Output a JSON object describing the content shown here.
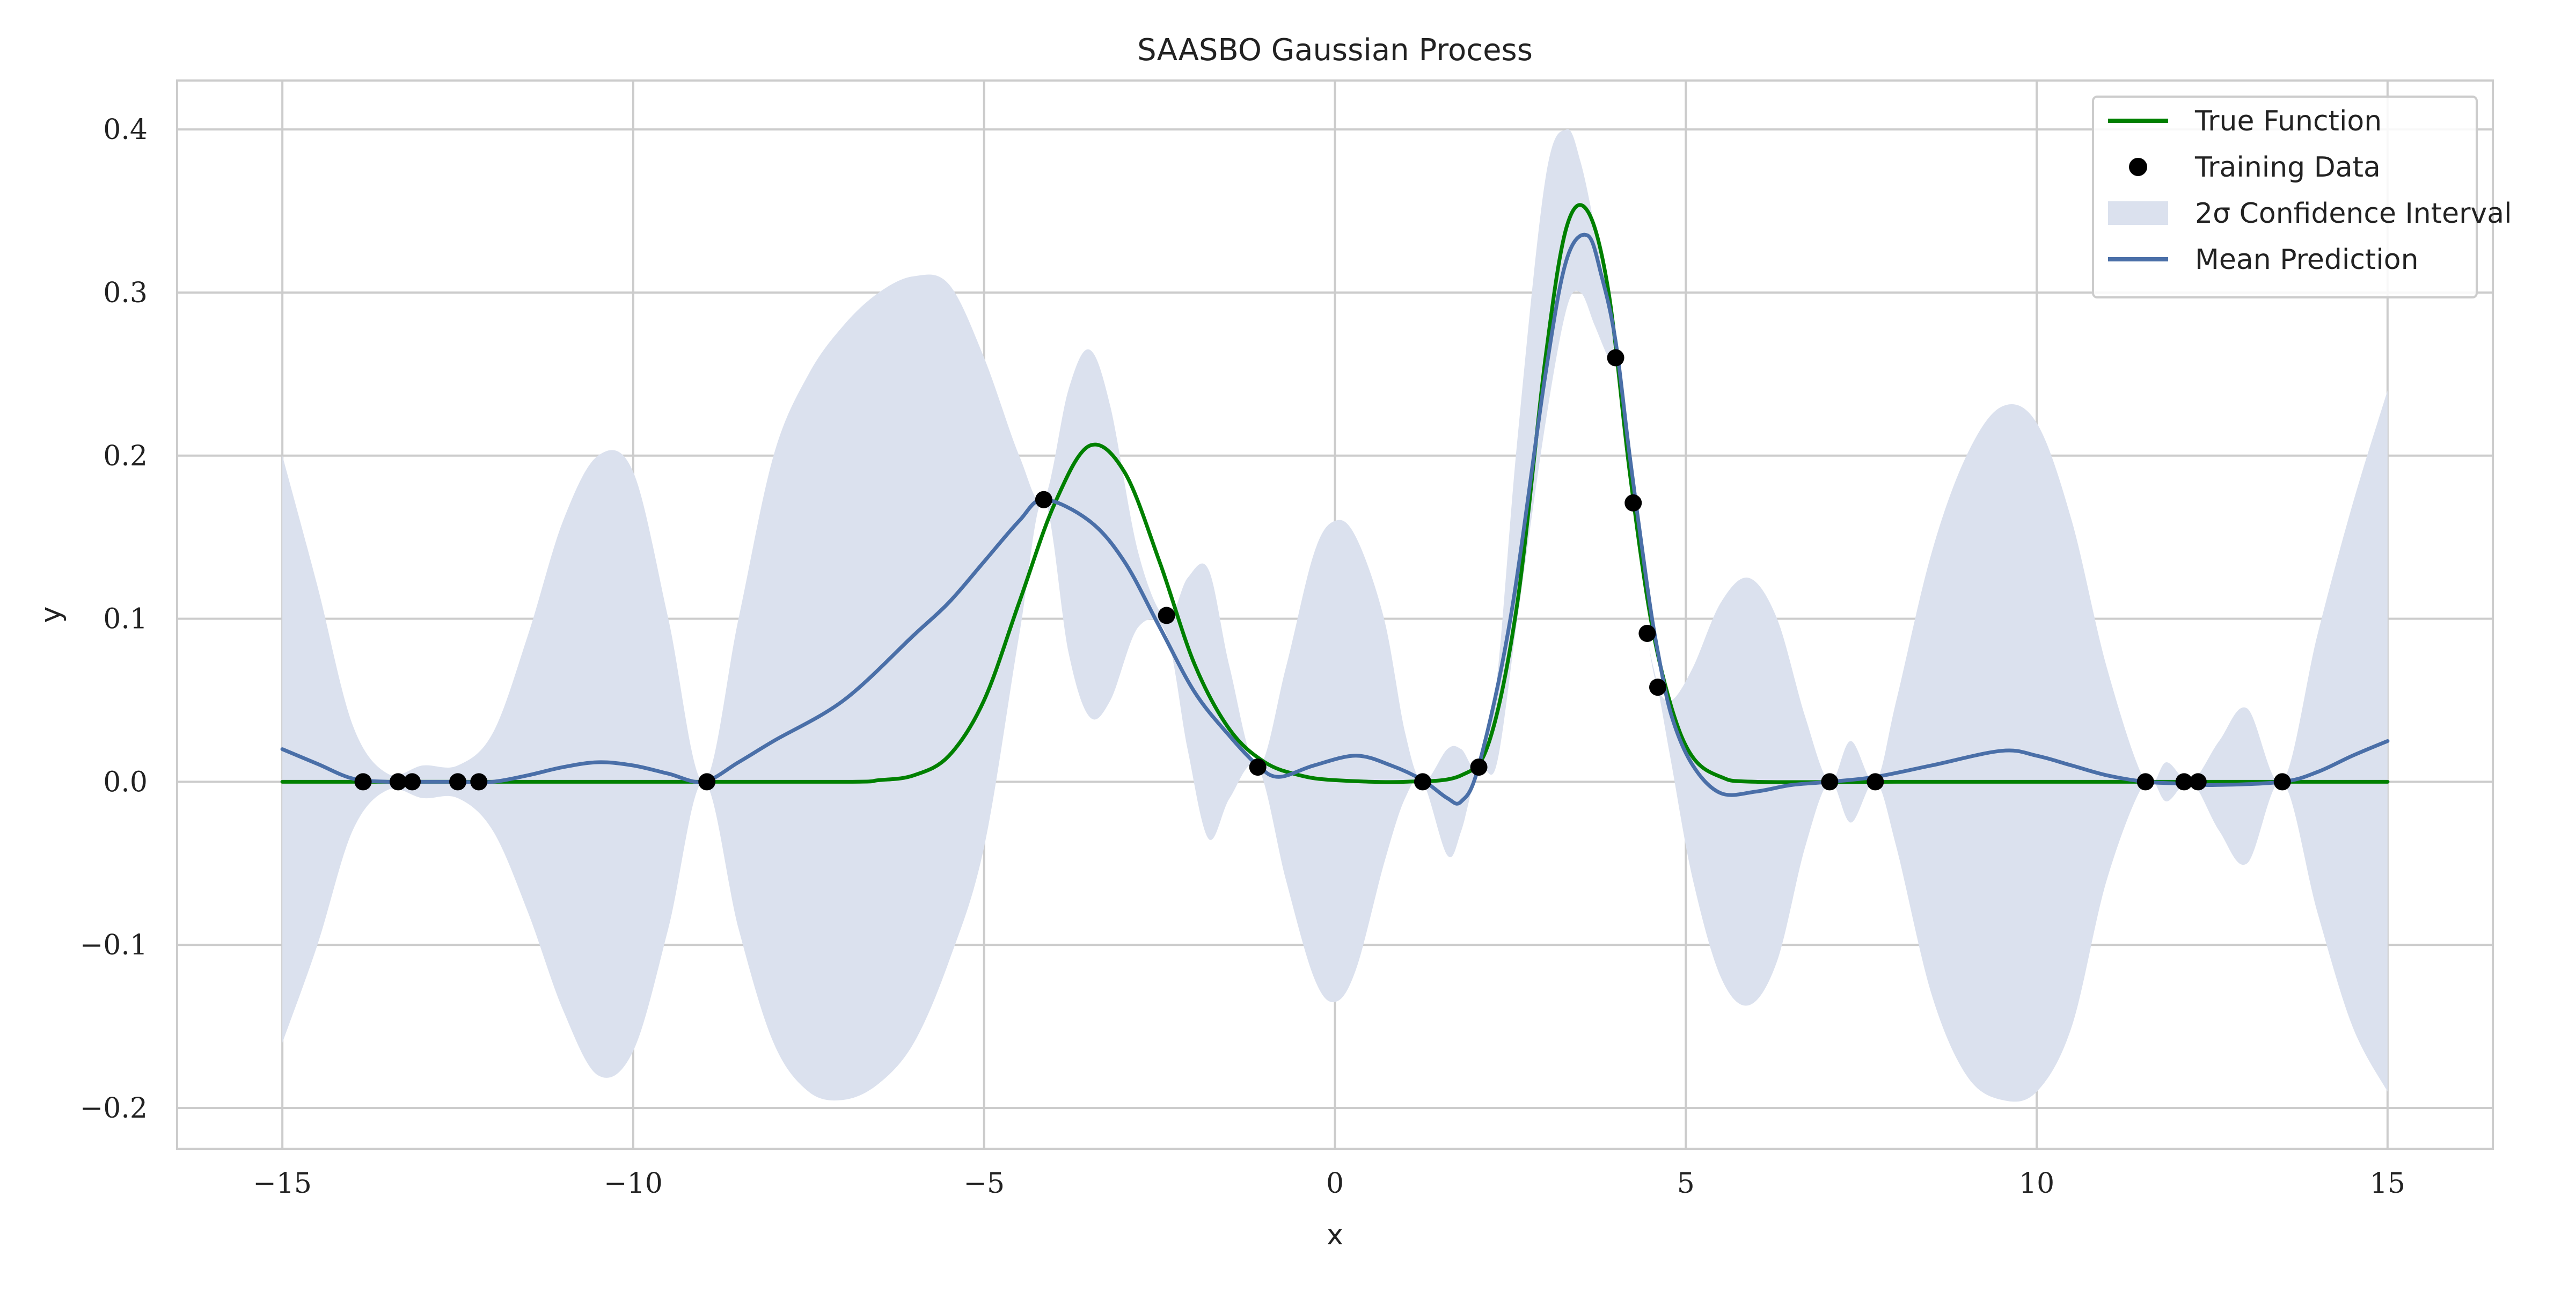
{
  "chart_data": {
    "type": "line",
    "title": "SAASBO Gaussian Process",
    "xlabel": "x",
    "ylabel": "y",
    "xlim": [
      -16.5,
      16.5
    ],
    "ylim": [
      -0.225,
      0.43
    ],
    "xticks": [
      -15,
      -10,
      -5,
      0,
      5,
      10,
      15
    ],
    "xtick_labels": [
      "−15",
      "−10",
      "−5",
      "0",
      "5",
      "10",
      "15"
    ],
    "yticks": [
      -0.2,
      -0.1,
      0.0,
      0.1,
      0.2,
      0.3,
      0.4
    ],
    "ytick_labels": [
      "−0.2",
      "−0.1",
      "0.0",
      "0.1",
      "0.2",
      "0.3",
      "0.4"
    ],
    "grid": true,
    "legend_position": "top-right",
    "legend": [
      {
        "label": "True Function",
        "kind": "line",
        "color": "#008000"
      },
      {
        "label": "Training Data",
        "kind": "marker",
        "color": "#000000"
      },
      {
        "label": "2σ Confidence Interval",
        "kind": "band",
        "color": "#dbe1ee"
      },
      {
        "label": "Mean Prediction",
        "kind": "line",
        "color": "#4a6fa8"
      }
    ],
    "series": [
      {
        "name": "True Function",
        "kind": "line",
        "color": "#008000",
        "x": [
          -15,
          -10,
          -7,
          -6.5,
          -6,
          -5.5,
          -5,
          -4.5,
          -4,
          -3.5,
          -3,
          -2.5,
          -2,
          -1.5,
          -1,
          -0.5,
          0,
          1,
          1.8,
          2.2,
          2.6,
          3,
          3.3,
          3.6,
          3.9,
          4.2,
          4.5,
          4.8,
          5.1,
          5.5,
          6,
          8,
          10,
          12,
          15
        ],
        "y": [
          0,
          0,
          0,
          0.001,
          0.004,
          0.016,
          0.05,
          0.11,
          0.17,
          0.206,
          0.19,
          0.135,
          0.072,
          0.032,
          0.012,
          0.004,
          0.001,
          0,
          0.004,
          0.025,
          0.11,
          0.26,
          0.34,
          0.35,
          0.3,
          0.19,
          0.1,
          0.045,
          0.015,
          0.003,
          0,
          0,
          0,
          0,
          0
        ]
      },
      {
        "name": "Mean Prediction",
        "kind": "line",
        "color": "#4a6fa8",
        "x": [
          -15,
          -14.5,
          -14,
          -13.5,
          -13,
          -12.5,
          -12,
          -11.5,
          -11,
          -10.5,
          -10,
          -9.5,
          -9,
          -8.5,
          -8,
          -7,
          -6,
          -5.5,
          -5,
          -4.5,
          -4.15,
          -3.5,
          -3,
          -2.5,
          -2,
          -1.5,
          -1.1,
          -0.8,
          -0.3,
          0.3,
          0.8,
          1.25,
          1.6,
          1.8,
          2.05,
          2.5,
          3,
          3.3,
          3.6,
          3.8,
          4.0,
          4.2,
          4.45,
          4.6,
          4.8,
          5.1,
          5.5,
          6,
          6.5,
          7.05,
          7.7,
          8.5,
          9.5,
          10,
          10.5,
          11,
          11.55,
          12,
          12.5,
          13.5,
          14,
          14.5,
          15
        ],
        "y": [
          0.02,
          0.011,
          0.002,
          0,
          0,
          0,
          0,
          0.004,
          0.009,
          0.012,
          0.01,
          0.005,
          0,
          0.012,
          0.025,
          0.05,
          0.09,
          0.11,
          0.135,
          0.16,
          0.173,
          0.16,
          0.135,
          0.095,
          0.055,
          0.028,
          0.01,
          0.003,
          0.01,
          0.016,
          0.01,
          0.001,
          -0.01,
          -0.012,
          0.01,
          0.1,
          0.25,
          0.32,
          0.335,
          0.31,
          0.27,
          0.2,
          0.12,
          0.08,
          0.04,
          0.01,
          -0.007,
          -0.006,
          -0.002,
          0,
          0.003,
          0.01,
          0.019,
          0.016,
          0.01,
          0.004,
          0,
          -0.001,
          -0.002,
          0,
          0.006,
          0.016,
          0.025
        ]
      },
      {
        "name": "2σ Confidence Interval",
        "kind": "band",
        "color": "#dbe1ee",
        "x": [
          -15,
          -14.5,
          -14,
          -13.5,
          -13,
          -12.5,
          -12,
          -11.5,
          -11,
          -10.5,
          -10,
          -9.5,
          -9,
          -8.5,
          -8,
          -7.5,
          -7,
          -6.5,
          -6,
          -5.5,
          -5,
          -4.5,
          -4.15,
          -3.8,
          -3.5,
          -3.2,
          -2.8,
          -2.4,
          -2.1,
          -1.8,
          -1.5,
          -1.1,
          -0.7,
          -0.3,
          0,
          0.3,
          0.7,
          1.0,
          1.25,
          1.6,
          1.8,
          2.05,
          2.3,
          2.6,
          3.0,
          3.3,
          3.5,
          3.7,
          3.9,
          4.0,
          4.2,
          4.45,
          4.6,
          4.8,
          5.1,
          5.5,
          5.9,
          6.3,
          6.7,
          7.05,
          7.35,
          7.7,
          8.0,
          8.5,
          9.0,
          9.5,
          10.0,
          10.5,
          11.0,
          11.55,
          11.85,
          12.2,
          12.6,
          13.0,
          13.5,
          14.0,
          14.5,
          15
        ],
        "y_lower": [
          -0.16,
          -0.1,
          -0.03,
          -0.005,
          -0.01,
          -0.01,
          -0.03,
          -0.08,
          -0.14,
          -0.18,
          -0.165,
          -0.09,
          0,
          -0.09,
          -0.16,
          -0.19,
          -0.195,
          -0.185,
          -0.16,
          -0.11,
          -0.04,
          0.09,
          0.173,
          0.08,
          0.04,
          0.05,
          0.095,
          0.09,
          0.02,
          -0.035,
          -0.01,
          0.009,
          -0.06,
          -0.12,
          -0.135,
          -0.115,
          -0.05,
          -0.01,
          0.0,
          -0.045,
          -0.03,
          0.009,
          0.01,
          0.1,
          0.22,
          0.29,
          0.3,
          0.28,
          0.26,
          0.26,
          0.17,
          0.09,
          0.058,
          0.01,
          -0.06,
          -0.12,
          -0.137,
          -0.11,
          -0.04,
          0.0,
          -0.025,
          0.0,
          -0.04,
          -0.13,
          -0.18,
          -0.195,
          -0.19,
          -0.15,
          -0.06,
          0.0,
          -0.012,
          0.0,
          -0.03,
          -0.05,
          0.0,
          -0.08,
          -0.15,
          -0.19
        ],
        "y_upper": [
          0.2,
          0.12,
          0.035,
          0.005,
          0.01,
          0.01,
          0.03,
          0.09,
          0.16,
          0.2,
          0.19,
          0.1,
          0,
          0.1,
          0.2,
          0.25,
          0.28,
          0.3,
          0.31,
          0.305,
          0.26,
          0.2,
          0.173,
          0.24,
          0.265,
          0.23,
          0.14,
          0.1,
          0.125,
          0.13,
          0.07,
          0.009,
          0.07,
          0.14,
          0.16,
          0.15,
          0.1,
          0.03,
          0.0,
          0.02,
          0.02,
          0.009,
          0.06,
          0.21,
          0.37,
          0.4,
          0.38,
          0.34,
          0.29,
          0.26,
          0.17,
          0.09,
          0.058,
          0.05,
          0.07,
          0.11,
          0.125,
          0.1,
          0.04,
          0.0,
          0.025,
          0.0,
          0.05,
          0.14,
          0.2,
          0.23,
          0.22,
          0.16,
          0.07,
          0.0,
          0.012,
          0.0,
          0.025,
          0.045,
          0.0,
          0.09,
          0.17,
          0.24
        ]
      },
      {
        "name": "Training Data",
        "kind": "scatter",
        "color": "#000000",
        "x": [
          -13.85,
          -13.35,
          -13.15,
          -12.5,
          -12.2,
          -8.95,
          -4.15,
          -2.4,
          -1.1,
          1.25,
          2.05,
          4.0,
          4.25,
          4.45,
          4.6,
          7.05,
          7.7,
          11.55,
          12.1,
          12.3,
          13.5
        ],
        "y": [
          0,
          0,
          0,
          0,
          0,
          0,
          0.173,
          0.102,
          0.009,
          0,
          0.009,
          0.26,
          0.171,
          0.091,
          0.058,
          0,
          0,
          0,
          0,
          0,
          0
        ]
      }
    ]
  }
}
